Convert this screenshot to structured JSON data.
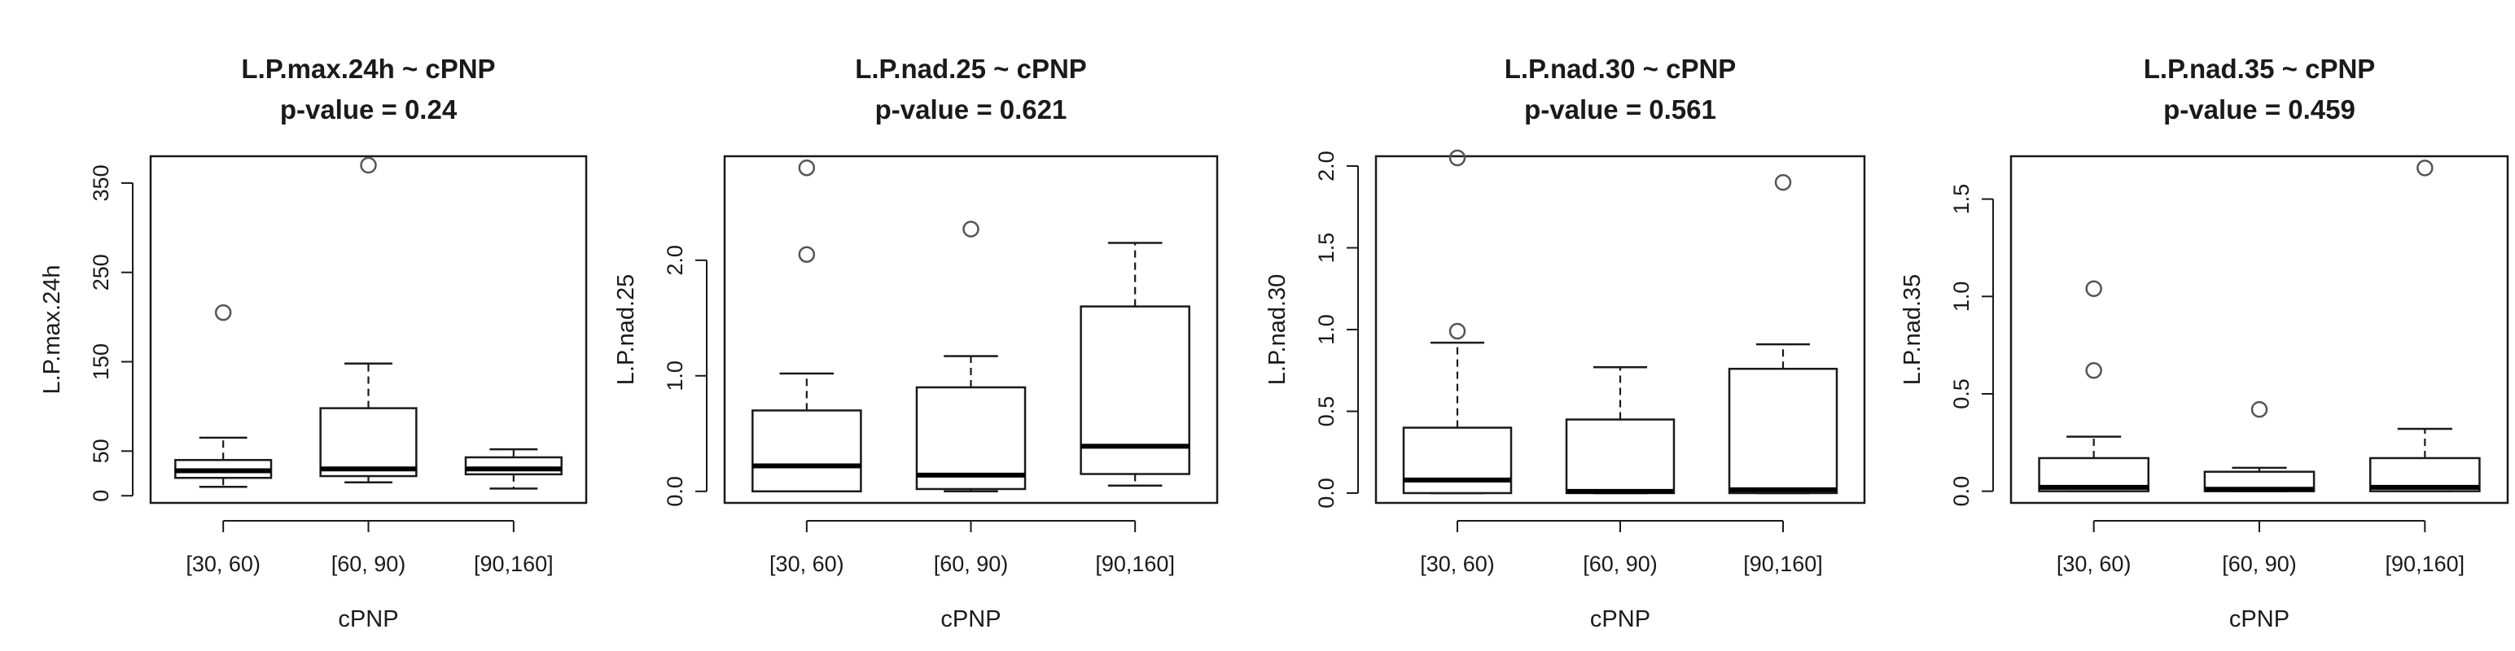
{
  "chart_data": [
    {
      "type": "box",
      "title": "L.P.max.24h ~ cPNP",
      "subtitle": "p-value = 0.24",
      "xlabel": "cPNP",
      "ylabel": "L.P.max.24h",
      "categories": [
        "[30, 60)",
        "[60, 90)",
        "[90,160]"
      ],
      "yticks": [
        0,
        50,
        150,
        250,
        350
      ],
      "ylim": [
        -8,
        380
      ],
      "boxes": [
        {
          "lower_whisker": 10,
          "q1": 20,
          "median": 28,
          "q3": 40,
          "upper_whisker": 65,
          "outliers": [
            205
          ]
        },
        {
          "lower_whisker": 15,
          "q1": 22,
          "median": 30,
          "q3": 98,
          "upper_whisker": 148,
          "outliers": [
            370
          ]
        },
        {
          "lower_whisker": 8,
          "q1": 24,
          "median": 30,
          "q3": 43,
          "upper_whisker": 52,
          "outliers": []
        }
      ]
    },
    {
      "type": "box",
      "title": "L.P.nad.25 ~ cPNP",
      "subtitle": "p-value = 0.621",
      "xlabel": "cPNP",
      "ylabel": "L.P.nad.25",
      "categories": [
        "[30, 60)",
        "[60, 90)",
        "[90,160]"
      ],
      "yticks": [
        0.0,
        1.0,
        2.0
      ],
      "ytick_labels": [
        "0.0",
        "1.0",
        "2.0"
      ],
      "ylim": [
        -0.1,
        2.9
      ],
      "boxes": [
        {
          "lower_whisker": 0.0,
          "q1": 0.0,
          "median": 0.22,
          "q3": 0.7,
          "upper_whisker": 1.02,
          "outliers": [
            2.05,
            2.8
          ]
        },
        {
          "lower_whisker": 0.0,
          "q1": 0.02,
          "median": 0.14,
          "q3": 0.9,
          "upper_whisker": 1.17,
          "outliers": [
            2.27
          ]
        },
        {
          "lower_whisker": 0.05,
          "q1": 0.15,
          "median": 0.39,
          "q3": 1.6,
          "upper_whisker": 2.15,
          "outliers": []
        }
      ]
    },
    {
      "type": "box",
      "title": "L.P.nad.30 ~ cPNP",
      "subtitle": "p-value = 0.561",
      "xlabel": "cPNP",
      "ylabel": "L.P.nad.30",
      "categories": [
        "[30, 60)",
        "[60, 90)",
        "[90,160]"
      ],
      "yticks": [
        0.0,
        0.5,
        1.0,
        1.5,
        2.0
      ],
      "ytick_labels": [
        "0.0",
        "0.5",
        "1.0",
        "1.5",
        "2.0"
      ],
      "ylim": [
        -0.06,
        2.06
      ],
      "boxes": [
        {
          "lower_whisker": 0.0,
          "q1": 0.0,
          "median": 0.08,
          "q3": 0.4,
          "upper_whisker": 0.92,
          "outliers": [
            0.99,
            2.05
          ]
        },
        {
          "lower_whisker": 0.0,
          "q1": 0.0,
          "median": 0.01,
          "q3": 0.45,
          "upper_whisker": 0.77,
          "outliers": []
        },
        {
          "lower_whisker": 0.0,
          "q1": 0.0,
          "median": 0.02,
          "q3": 0.76,
          "upper_whisker": 0.91,
          "outliers": [
            1.9
          ]
        }
      ]
    },
    {
      "type": "box",
      "title": "L.P.nad.35 ~ cPNP",
      "subtitle": "p-value = 0.459",
      "xlabel": "cPNP",
      "ylabel": "L.P.nad.35",
      "categories": [
        "[30, 60)",
        "[60, 90)",
        "[90,160]"
      ],
      "yticks": [
        0.0,
        0.5,
        1.0,
        1.5
      ],
      "ytick_labels": [
        "0.0",
        "0.5",
        "1.0",
        "1.5"
      ],
      "ylim": [
        -0.06,
        1.72
      ],
      "boxes": [
        {
          "lower_whisker": 0.0,
          "q1": 0.0,
          "median": 0.02,
          "q3": 0.17,
          "upper_whisker": 0.28,
          "outliers": [
            0.62,
            1.04
          ]
        },
        {
          "lower_whisker": 0.0,
          "q1": 0.0,
          "median": 0.01,
          "q3": 0.1,
          "upper_whisker": 0.12,
          "outliers": [
            0.42
          ]
        },
        {
          "lower_whisker": 0.0,
          "q1": 0.0,
          "median": 0.02,
          "q3": 0.17,
          "upper_whisker": 0.32,
          "outliers": [
            1.66
          ]
        }
      ]
    }
  ]
}
